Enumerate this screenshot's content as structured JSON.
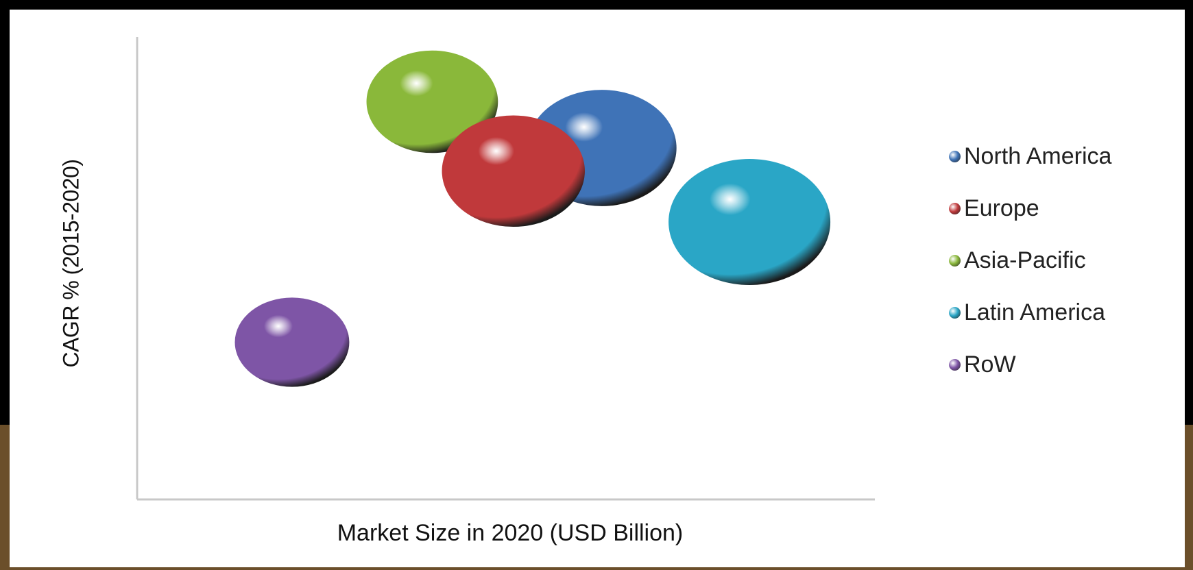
{
  "chart_data": {
    "type": "bubble",
    "xlabel": "Market Size in 2020 (USD Billion)",
    "ylabel": "CAGR % (2015-2020)",
    "xlim": [
      0,
      100
    ],
    "ylim": [
      0,
      100
    ],
    "grid": false,
    "legend_position": "right",
    "series": [
      {
        "name": "North America",
        "color": "#3f73b7",
        "x": 63,
        "y": 76,
        "size": 85
      },
      {
        "name": "Europe",
        "color": "#c0393b",
        "x": 51,
        "y": 71,
        "size": 78
      },
      {
        "name": "Asia-Pacific",
        "color": "#8ab83a",
        "x": 40,
        "y": 86,
        "size": 66
      },
      {
        "name": "Latin America",
        "color": "#2aa6c6",
        "x": 83,
        "y": 60,
        "size": 100
      },
      {
        "name": "RoW",
        "color": "#7e55a6",
        "x": 21,
        "y": 34,
        "size": 50
      }
    ]
  }
}
